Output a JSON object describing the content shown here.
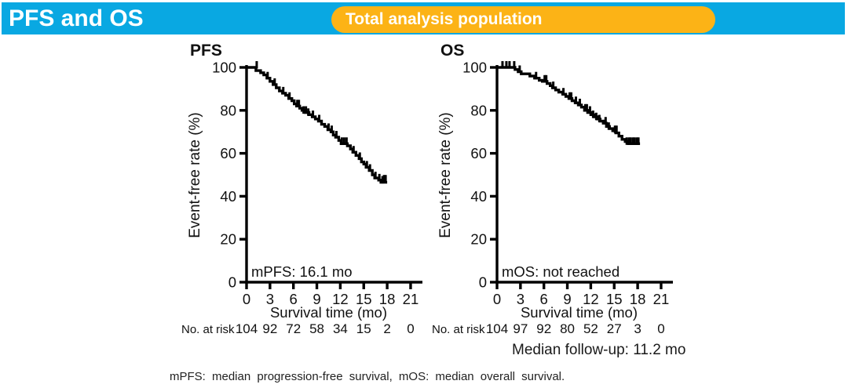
{
  "header": {
    "title": "PFS and OS",
    "badge": "Total analysis population"
  },
  "colors": {
    "header_bar": "#09A8E2",
    "badge": "#FCB316",
    "chart_title": "#1FA9E2",
    "curve": "#000000",
    "axis": "#000000"
  },
  "footer": {
    "median_followup": "Median follow-up: 11.2 mo",
    "footnote": "mPFS: median progression-free survival, mOS: median overall survival."
  },
  "chart_data": [
    {
      "type": "line",
      "subtype": "kaplan-meier-step",
      "title": "PFS",
      "xlabel": "Survival time (mo)",
      "ylabel": "Event-free rate (%)",
      "xlim": [
        0,
        22.5
      ],
      "ylim": [
        0,
        100
      ],
      "xticks": [
        0,
        3,
        6,
        9,
        12,
        15,
        18,
        21
      ],
      "yticks": [
        0,
        20,
        40,
        60,
        80,
        100
      ],
      "grid": false,
      "legend": null,
      "annotation": "mPFS: 16.1 mo",
      "at_risk_label": "No. at risk",
      "at_risk": [
        104,
        92,
        72,
        58,
        34,
        15,
        2,
        0
      ],
      "steps": [
        [
          0,
          100
        ],
        [
          1.2,
          98.5
        ],
        [
          1.8,
          97.5
        ],
        [
          2.2,
          96.5
        ],
        [
          2.6,
          95
        ],
        [
          3.0,
          93.5
        ],
        [
          3.4,
          92
        ],
        [
          3.8,
          90.5
        ],
        [
          4.2,
          89
        ],
        [
          4.6,
          88
        ],
        [
          5.0,
          87
        ],
        [
          5.4,
          85.5
        ],
        [
          5.8,
          84.5
        ],
        [
          6.1,
          83
        ],
        [
          6.4,
          82
        ],
        [
          6.8,
          81
        ],
        [
          7.1,
          80
        ],
        [
          7.5,
          79
        ],
        [
          8.0,
          78
        ],
        [
          8.4,
          77
        ],
        [
          8.8,
          76
        ],
        [
          9.2,
          75
        ],
        [
          9.6,
          73.5
        ],
        [
          10.0,
          72.5
        ],
        [
          10.4,
          71
        ],
        [
          10.8,
          70
        ],
        [
          11.1,
          68.5
        ],
        [
          11.4,
          67.5
        ],
        [
          11.8,
          66
        ],
        [
          12.1,
          64.5
        ],
        [
          12.9,
          63.5
        ],
        [
          13.3,
          62
        ],
        [
          13.6,
          60.5
        ],
        [
          14.0,
          59
        ],
        [
          14.4,
          57.5
        ],
        [
          14.7,
          56
        ],
        [
          15.0,
          55
        ],
        [
          15.3,
          53.5
        ],
        [
          15.7,
          52
        ],
        [
          16.1,
          50
        ],
        [
          16.4,
          48.5
        ],
        [
          16.9,
          47.5
        ],
        [
          17.2,
          46.5
        ],
        [
          18.0,
          46.5
        ]
      ],
      "censors": [
        [
          1.3,
          100
        ],
        [
          2.7,
          95
        ],
        [
          3.6,
          92
        ],
        [
          4.7,
          88
        ],
        [
          5.5,
          85.5
        ],
        [
          6.5,
          82
        ],
        [
          6.7,
          82
        ],
        [
          7.3,
          79
        ],
        [
          7.6,
          79
        ],
        [
          7.9,
          78
        ],
        [
          8.5,
          77
        ],
        [
          9.3,
          75
        ],
        [
          10.5,
          71
        ],
        [
          10.9,
          70
        ],
        [
          11.5,
          67.5
        ],
        [
          12.2,
          64.5
        ],
        [
          12.5,
          64.5
        ],
        [
          12.8,
          64.5
        ],
        [
          13.7,
          60.5
        ],
        [
          14.5,
          57.5
        ],
        [
          15.4,
          53.5
        ],
        [
          15.8,
          52
        ],
        [
          16.5,
          48.5
        ],
        [
          17.0,
          47.5
        ],
        [
          17.4,
          46.5
        ],
        [
          17.6,
          47
        ],
        [
          17.8,
          47
        ]
      ]
    },
    {
      "type": "line",
      "subtype": "kaplan-meier-step",
      "title": "OS",
      "xlabel": "Survival time (mo)",
      "ylabel": "Event-free rate (%)",
      "xlim": [
        0,
        22.5
      ],
      "ylim": [
        0,
        100
      ],
      "xticks": [
        0,
        3,
        6,
        9,
        12,
        15,
        18,
        21
      ],
      "yticks": [
        0,
        20,
        40,
        60,
        80,
        100
      ],
      "grid": false,
      "legend": null,
      "annotation": "mOS: not reached",
      "at_risk_label": "No. at risk",
      "at_risk": [
        104,
        97,
        92,
        80,
        52,
        27,
        3,
        0
      ],
      "steps": [
        [
          0,
          100
        ],
        [
          2.3,
          99
        ],
        [
          2.7,
          98
        ],
        [
          3.1,
          97
        ],
        [
          4.2,
          96
        ],
        [
          4.8,
          95
        ],
        [
          5.4,
          94
        ],
        [
          5.8,
          93.5
        ],
        [
          6.4,
          92.5
        ],
        [
          6.8,
          91.5
        ],
        [
          7.1,
          90.5
        ],
        [
          7.5,
          89.5
        ],
        [
          7.9,
          88.5
        ],
        [
          8.4,
          87.5
        ],
        [
          8.8,
          86.5
        ],
        [
          9.2,
          85.5
        ],
        [
          9.6,
          84.5
        ],
        [
          10.0,
          83.5
        ],
        [
          10.4,
          82.5
        ],
        [
          10.8,
          81.5
        ],
        [
          11.2,
          80
        ],
        [
          11.6,
          79
        ],
        [
          12.0,
          78
        ],
        [
          12.4,
          77
        ],
        [
          12.8,
          76
        ],
        [
          13.2,
          75
        ],
        [
          13.6,
          74
        ],
        [
          14.0,
          72.5
        ],
        [
          14.4,
          71.5
        ],
        [
          14.8,
          70.5
        ],
        [
          15.2,
          69.5
        ],
        [
          15.6,
          68
        ],
        [
          16.0,
          66.5
        ],
        [
          16.4,
          65.5
        ],
        [
          16.8,
          64.5
        ],
        [
          18.3,
          64.5
        ]
      ],
      "censors": [
        [
          0.7,
          100
        ],
        [
          1.2,
          100
        ],
        [
          1.6,
          100
        ],
        [
          2.2,
          100
        ],
        [
          2.9,
          98
        ],
        [
          5.0,
          95
        ],
        [
          6.1,
          93.5
        ],
        [
          6.3,
          93.5
        ],
        [
          7.2,
          90.5
        ],
        [
          8.5,
          87.5
        ],
        [
          9.3,
          85.5
        ],
        [
          9.5,
          85.5
        ],
        [
          10.1,
          83.5
        ],
        [
          10.6,
          82.5
        ],
        [
          11.3,
          80
        ],
        [
          11.5,
          80
        ],
        [
          11.9,
          79
        ],
        [
          12.3,
          77
        ],
        [
          12.7,
          76
        ],
        [
          13.1,
          75
        ],
        [
          13.9,
          74
        ],
        [
          14.3,
          71.5
        ],
        [
          15.1,
          70
        ],
        [
          15.3,
          70
        ],
        [
          16.6,
          64.5
        ],
        [
          16.9,
          64.5
        ],
        [
          17.1,
          64.5
        ],
        [
          17.4,
          64.5
        ],
        [
          17.6,
          64.5
        ],
        [
          17.9,
          64.5
        ],
        [
          18.1,
          64.5
        ]
      ]
    }
  ]
}
